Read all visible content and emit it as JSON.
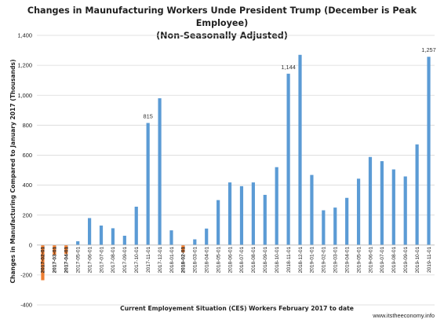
{
  "chart_data": {
    "type": "bar",
    "title": "Changes in Maunufacturing Workers Unde President Trump (December is Peak Employee)",
    "subtitle": "(Non-Seasonally Adjusted)",
    "xlabel": "Current Employement Situation (CES) Workers February 2017 to date",
    "ylabel": "Changes in Manufacturing Compared to January 2017 (Thousands)",
    "ylim": [
      -400,
      1400
    ],
    "yticks": [
      "-400",
      "-200",
      "0",
      "200",
      "400",
      "600",
      "800",
      "1,000",
      "1,200",
      "1,400"
    ],
    "grid": true,
    "legend": "none",
    "source": "www.itstheeconomy.info",
    "colors": {
      "default": "#5b9bd5",
      "highlight": "#ed7d31"
    },
    "categories": [
      "2017-02-01",
      "2017-03-01",
      "2017-04-01",
      "2017-05-01",
      "2017-06-01",
      "2017-07-01",
      "2017-08-01",
      "2017-09-01",
      "2017-10-01",
      "2017-11-01",
      "2017-12-01",
      "2018-01-01",
      "2018-02-01",
      "2018-03-01",
      "2018-04-01",
      "2018-05-01",
      "2018-06-01",
      "2018-07-01",
      "2018-08-01",
      "2018-09-01",
      "2018-10-01",
      "2018-11-01",
      "2018-12-01",
      "2019-01-01",
      "2019-02-01",
      "2019-03-01",
      "2019-04-01",
      "2019-05-01",
      "2019-06-01",
      "2019-07-01",
      "2019-08-01",
      "2019-09-01",
      "2019-10-01",
      "2019-11-01"
    ],
    "values": [
      -235,
      -65,
      -60,
      25,
      180,
      130,
      112,
      62,
      256,
      815,
      980,
      98,
      -50,
      38,
      110,
      300,
      418,
      393,
      418,
      335,
      520,
      1144,
      1270,
      468,
      232,
      250,
      315,
      443,
      588,
      560,
      505,
      458,
      672,
      1257
    ],
    "highlighted": [
      0,
      1,
      2,
      12
    ],
    "data_labels": [
      {
        "index": 9,
        "text": "815"
      },
      {
        "index": 21,
        "text": "1,144"
      },
      {
        "index": 33,
        "text": "1,257"
      }
    ]
  }
}
